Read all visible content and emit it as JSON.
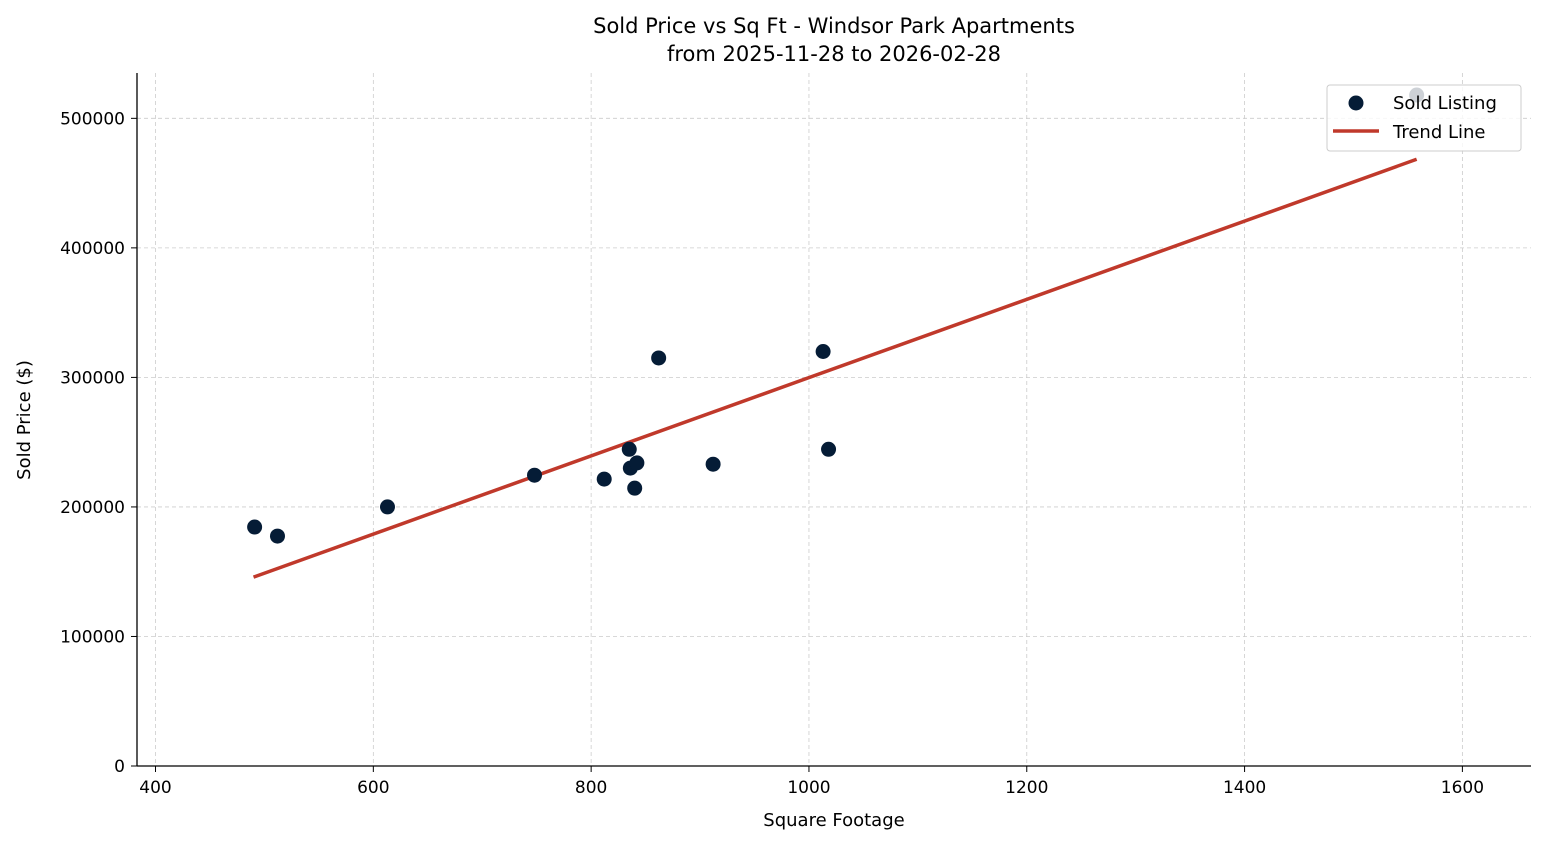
{
  "chart_data": {
    "type": "scatter",
    "title": "Sold Price vs Sq Ft - Windsor Park Apartments",
    "subtitle": "from 2025-11-28 to 2026-02-28",
    "xlabel": "Square Footage",
    "ylabel": "Sold Price ($)",
    "xlim": [
      383,
      1663
    ],
    "ylim": [
      0,
      535000
    ],
    "xticks": [
      400,
      600,
      800,
      1000,
      1200,
      1400,
      1600
    ],
    "yticks": [
      0,
      100000,
      200000,
      300000,
      400000,
      500000
    ],
    "grid": true,
    "legend_position": "top-right",
    "series": [
      {
        "name": "Sold Listing",
        "type": "scatter",
        "color": "#051c36",
        "points": [
          {
            "x": 491,
            "y": 184500
          },
          {
            "x": 512,
            "y": 177500
          },
          {
            "x": 613,
            "y": 200000
          },
          {
            "x": 748,
            "y": 224500
          },
          {
            "x": 812,
            "y": 221500
          },
          {
            "x": 835,
            "y": 244500
          },
          {
            "x": 836,
            "y": 230000
          },
          {
            "x": 842,
            "y": 234000
          },
          {
            "x": 840,
            "y": 214500
          },
          {
            "x": 862,
            "y": 315000
          },
          {
            "x": 912,
            "y": 233000
          },
          {
            "x": 1013,
            "y": 320000
          },
          {
            "x": 1018,
            "y": 244500
          },
          {
            "x": 1558,
            "y": 518000
          }
        ]
      },
      {
        "name": "Trend Line",
        "type": "line",
        "color": "#c0392b",
        "points": [
          {
            "x": 490,
            "y": 145800
          },
          {
            "x": 1558,
            "y": 468400
          }
        ]
      }
    ]
  }
}
